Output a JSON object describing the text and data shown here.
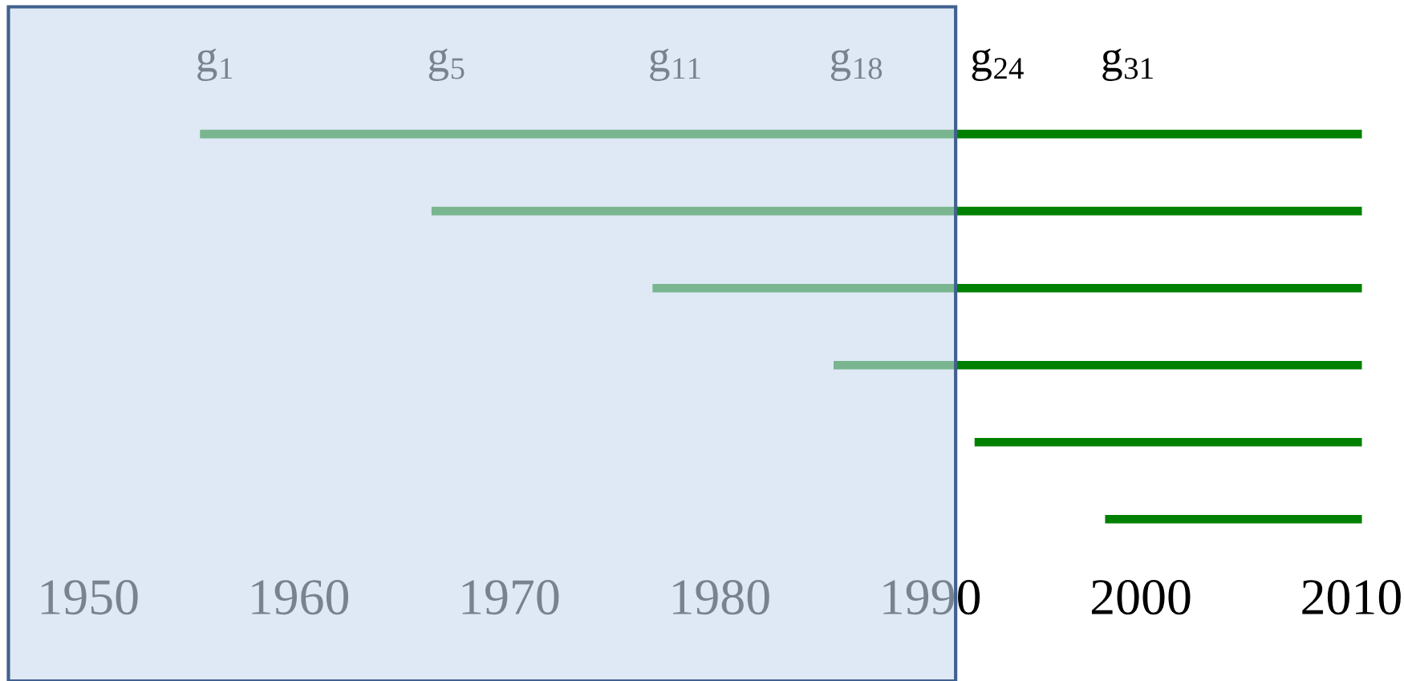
{
  "chart_data": {
    "type": "bar",
    "orientation": "horizontal",
    "categories": [
      null,
      null,
      null,
      null,
      null,
      null
    ],
    "base": [
      1955.3,
      1966.3,
      1976.8,
      1985.4,
      1992.1,
      1998.3
    ],
    "values": [
      55.2,
      44.2,
      33.7,
      25.1,
      18.4,
      12.2
    ],
    "color": "#008000",
    "xlim": [
      1945.8,
      2012.5
    ],
    "xticks": [
      1950,
      1960,
      1970,
      1980,
      1990,
      2000,
      2010
    ],
    "bands": [
      {
        "axis": "x",
        "from": 1946.2,
        "to": 1991.2,
        "color": "#c9dbef"
      }
    ],
    "annotations": [
      "g$_{1}$",
      "g$_{5}$",
      "g$_{11}$",
      "g$_{18}$",
      "g$_{24}$",
      "g$_{31}$"
    ],
    "grid": false,
    "legend": false
  }
}
